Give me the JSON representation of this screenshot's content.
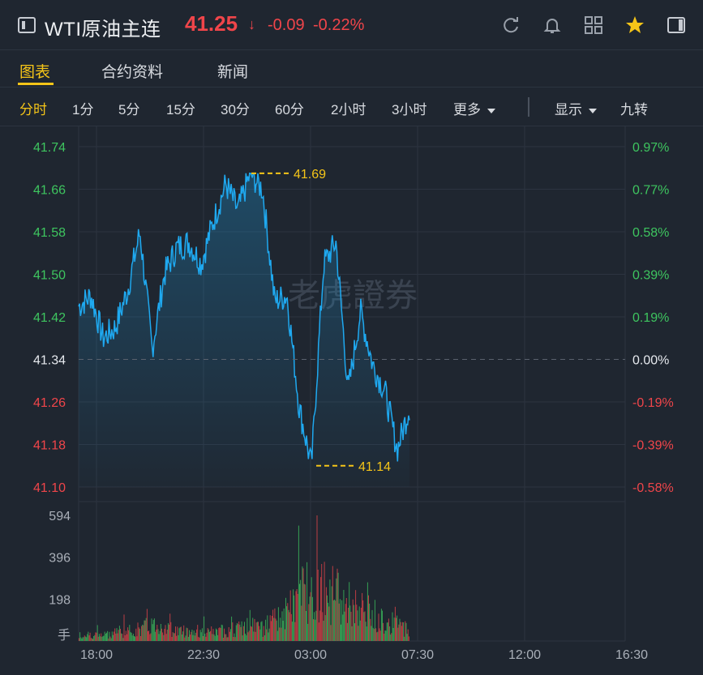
{
  "header": {
    "title": "WTI原油主连",
    "price": "41.25",
    "arrow": "↓",
    "change": "-0.09",
    "change_pct": "-0.22%"
  },
  "tabs": [
    {
      "label": "图表",
      "active": true
    },
    {
      "label": "合约资料",
      "active": false
    },
    {
      "label": "新闻",
      "active": false
    }
  ],
  "intervals": [
    {
      "label": "分时",
      "active": true
    },
    {
      "label": "1分"
    },
    {
      "label": "5分"
    },
    {
      "label": "15分"
    },
    {
      "label": "30分"
    },
    {
      "label": "60分"
    },
    {
      "label": "2小时"
    },
    {
      "label": "3小时"
    },
    {
      "label": "更多",
      "dropdown": true
    },
    {
      "label": "显示",
      "dropdown": true
    },
    {
      "label": "九转"
    }
  ],
  "header_icons": [
    "refresh-icon",
    "bell-icon",
    "grid-icon",
    "star-icon",
    "panel-icon"
  ],
  "colors": {
    "up": "#f0454a",
    "down": "#3ec55f",
    "line": "#1fa9f0",
    "accent": "#f5c518",
    "bg": "#1f2630"
  },
  "watermark": "老虎證券",
  "chart_data": {
    "type": "line",
    "title": "",
    "x_ticks": [
      "18:00",
      "22:30",
      "03:00",
      "07:30",
      "12:00",
      "16:30"
    ],
    "price_ticks": [
      "41.74",
      "41.66",
      "41.58",
      "41.50",
      "41.42",
      "41.34",
      "41.26",
      "41.18",
      "41.10"
    ],
    "pct_ticks": [
      "0.97%",
      "0.77%",
      "0.58%",
      "0.39%",
      "0.19%",
      "0.00%",
      "-0.19%",
      "-0.39%",
      "-0.58%"
    ],
    "prev_close": 41.34,
    "ylim": [
      41.1,
      41.74
    ],
    "high": {
      "value": 41.69,
      "label": "41.69"
    },
    "low": {
      "value": 41.14,
      "label": "41.14"
    },
    "volume_ticks": [
      "594",
      "396",
      "198"
    ],
    "volume_unit": "手",
    "volume_max": 594,
    "x": [
      "18:00",
      "18:30",
      "19:00",
      "19:30",
      "20:00",
      "20:30",
      "21:00",
      "21:30",
      "22:00",
      "22:30",
      "23:00",
      "23:30",
      "00:00",
      "00:30",
      "01:00",
      "01:30",
      "02:00",
      "02:30",
      "03:00",
      "03:30",
      "04:00",
      "04:30",
      "05:00",
      "05:30",
      "06:00",
      "06:30",
      "07:00",
      "07:30"
    ],
    "series": [
      {
        "values": [
          41.44,
          41.46,
          41.38,
          41.4,
          41.47,
          41.58,
          41.36,
          41.5,
          41.55,
          41.56,
          41.52,
          41.6,
          41.67,
          41.62,
          41.69,
          41.66,
          41.45,
          41.46,
          41.25,
          41.14,
          41.52,
          41.56,
          41.28,
          41.43,
          41.33,
          41.28,
          41.17,
          41.25
        ]
      },
      {
        "values": [
          25,
          40,
          30,
          60,
          55,
          70,
          95,
          80,
          60,
          55,
          50,
          45,
          65,
          70,
          90,
          75,
          120,
          160,
          280,
          330,
          300,
          260,
          210,
          180,
          150,
          120,
          90,
          70
        ]
      }
    ]
  }
}
